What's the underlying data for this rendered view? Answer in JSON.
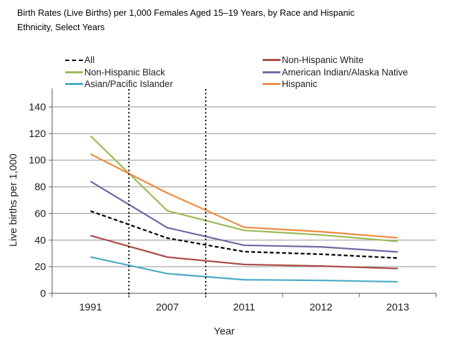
{
  "title": {
    "line1": "Birth Rates (Live Births) per 1,000 Females Aged 15–19 Years, by Race and Hispanic",
    "line2": "Ethnicity, Select Years"
  },
  "legend": {
    "columns": [
      [
        "All",
        "Non-Hispanic Black",
        "Asian/Pacific Islander"
      ],
      [
        "Non-Hispanic White",
        "American Indian/Alaska Native",
        "Hispanic"
      ]
    ]
  },
  "colors": {
    "background": "#FFFFFF",
    "gridline": "#8F8F8F",
    "axis": "#6E6E6E",
    "tick_text": "#1F1F1F",
    "annotation_line": "#000000"
  },
  "chart_data": {
    "type": "line",
    "title": "Birth Rates (Live Births) per 1,000 Females Aged 15–19 Years, by Race and Hispanic Ethnicity, Select Years",
    "xlabel": "Year",
    "ylabel": "Live births per 1,000",
    "categories": [
      "1991",
      "2007",
      "2011",
      "2012",
      "2013"
    ],
    "ylim": [
      0,
      140
    ],
    "ytick_interval": 20,
    "yticks": [
      0,
      20,
      40,
      60,
      80,
      100,
      120,
      140
    ],
    "grid": "horizontal",
    "legend_position": "top",
    "dividers_after_category": [
      0,
      1
    ],
    "series": [
      {
        "name": "All",
        "values": [
          61.8,
          41.5,
          31.3,
          29.4,
          26.5
        ],
        "color": "#000000",
        "style": "dashed"
      },
      {
        "name": "Non-Hispanic White",
        "values": [
          43.4,
          27.2,
          21.7,
          20.5,
          18.6
        ],
        "color": "#AC4B47",
        "style": "solid"
      },
      {
        "name": "Non-Hispanic Black",
        "values": [
          118.2,
          62.0,
          47.3,
          43.9,
          39.0
        ],
        "color": "#9BBB59",
        "style": "solid"
      },
      {
        "name": "American Indian/Alaska Native",
        "values": [
          84.1,
          49.3,
          36.1,
          34.9,
          31.1
        ],
        "color": "#7766A3",
        "style": "solid"
      },
      {
        "name": "Asian/Pacific Islander",
        "values": [
          27.3,
          14.8,
          10.2,
          9.7,
          8.7
        ],
        "color": "#4BACC6",
        "style": "solid"
      },
      {
        "name": "Hispanic",
        "values": [
          104.6,
          75.3,
          49.6,
          46.3,
          41.7
        ],
        "color": "#ED8C40",
        "style": "solid"
      }
    ]
  }
}
